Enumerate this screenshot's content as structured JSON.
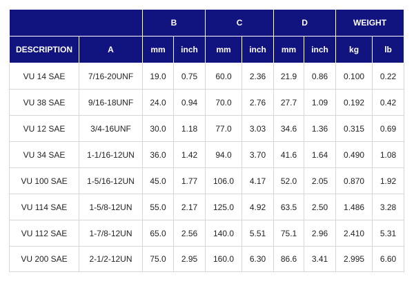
{
  "table": {
    "group_headers": {
      "b": "B",
      "c": "C",
      "d": "D",
      "weight": "WEIGHT"
    },
    "sub_headers": [
      "DESCRIPTION",
      "A",
      "mm",
      "inch",
      "mm",
      "inch",
      "mm",
      "inch",
      "kg",
      "lb"
    ],
    "rows": [
      [
        "VU 14 SAE",
        "7/16-20UNF",
        "19.0",
        "0.75",
        "60.0",
        "2.36",
        "21.9",
        "0.86",
        "0.100",
        "0.22"
      ],
      [
        "VU 38 SAE",
        "9/16-18UNF",
        "24.0",
        "0.94",
        "70.0",
        "2.76",
        "27.7",
        "1.09",
        "0.192",
        "0.42"
      ],
      [
        "VU 12 SAE",
        "3/4-16UNF",
        "30.0",
        "1.18",
        "77.0",
        "3.03",
        "34.6",
        "1.36",
        "0.315",
        "0.69"
      ],
      [
        "VU 34 SAE",
        "1-1/16-12UN",
        "36.0",
        "1.42",
        "94.0",
        "3.70",
        "41.6",
        "1.64",
        "0.490",
        "1.08"
      ],
      [
        "VU 100 SAE",
        "1-5/16-12UN",
        "45.0",
        "1.77",
        "106.0",
        "4.17",
        "52.0",
        "2.05",
        "0.870",
        "1.92"
      ],
      [
        "VU 114 SAE",
        "1-5/8-12UN",
        "55.0",
        "2.17",
        "125.0",
        "4.92",
        "63.5",
        "2.50",
        "1.486",
        "3.28"
      ],
      [
        "VU 112 SAE",
        "1-7/8-12UN",
        "65.0",
        "2.56",
        "140.0",
        "5.51",
        "75.1",
        "2.96",
        "2.410",
        "5.31"
      ],
      [
        "VU 200 SAE",
        "2-1/2-12UN",
        "75.0",
        "2.95",
        "160.0",
        "6.30",
        "86.6",
        "3.41",
        "2.995",
        "6.60"
      ]
    ]
  },
  "colors": {
    "header_bg": "#11147f",
    "header_text": "#ffffff",
    "grid": "#d6d6d6"
  }
}
